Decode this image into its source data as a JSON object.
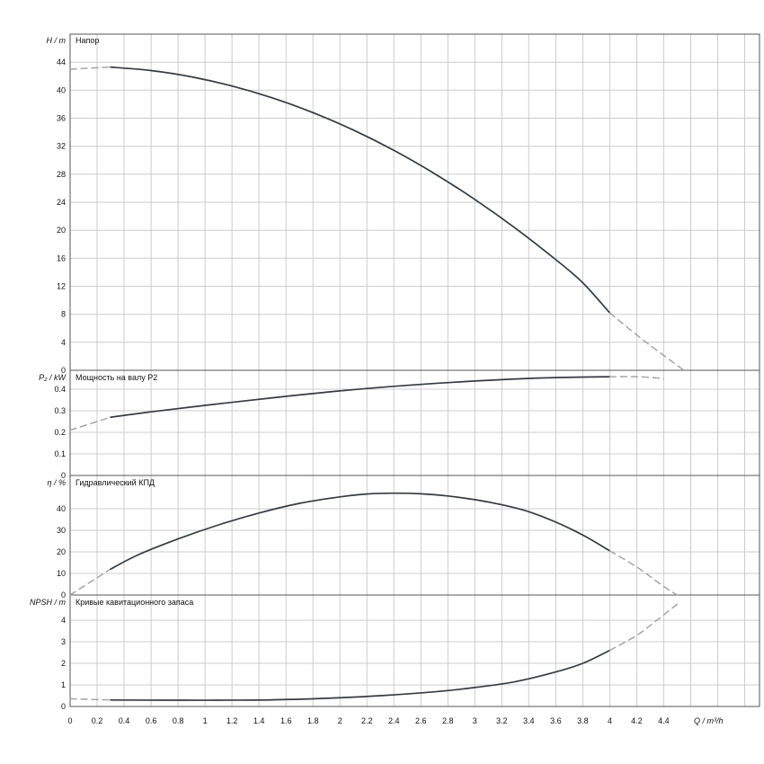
{
  "page": {
    "background": "#ffffff"
  },
  "colors": {
    "curve": "#333b42",
    "dashed": "#a0a0a0",
    "grid": "#cccccc",
    "border": "#555555",
    "text": "#111111",
    "bg": "#ffffff"
  },
  "xaxis": {
    "label": "Q / m³/h",
    "xlim": [
      0,
      5.11
    ],
    "grid_step": 0.2,
    "grid_max": 5.0,
    "ticks": [
      0,
      0.2,
      0.4,
      0.6,
      0.8,
      1,
      1.2,
      1.4,
      1.6,
      1.8,
      2,
      2.2,
      2.4,
      2.6,
      2.8,
      3,
      3.2,
      3.4,
      3.6,
      3.8,
      4,
      4.2,
      4.4
    ],
    "tick_labels": [
      "0",
      "0.2",
      "0.4",
      "0.6",
      "0.8",
      "1",
      "1.2",
      "1.4",
      "1.6",
      "1.8",
      "2",
      "2.2",
      "2.4",
      "2.6",
      "2.8",
      "3",
      "3.2",
      "3.4",
      "3.6",
      "3.8",
      "4",
      "4.2",
      "4.4"
    ]
  },
  "chart_data": [
    {
      "type": "line",
      "title": "Напор",
      "ylabel": "H / m",
      "ylim": [
        0,
        48
      ],
      "yticks": [
        0,
        4,
        8,
        12,
        16,
        20,
        24,
        28,
        32,
        36,
        40,
        44
      ],
      "series": [
        {
          "name": "head-extension-left",
          "style": "dashed",
          "points": [
            [
              0,
              43.0
            ],
            [
              0.3,
              43.3
            ]
          ]
        },
        {
          "name": "head-curve",
          "style": "solid",
          "points": [
            [
              0.3,
              43.3
            ],
            [
              0.6,
              42.8
            ],
            [
              0.9,
              41.9
            ],
            [
              1.2,
              40.6
            ],
            [
              1.5,
              38.9
            ],
            [
              1.8,
              36.8
            ],
            [
              2.1,
              34.3
            ],
            [
              2.4,
              31.4
            ],
            [
              2.7,
              28.1
            ],
            [
              3.0,
              24.4
            ],
            [
              3.3,
              20.3
            ],
            [
              3.6,
              15.8
            ],
            [
              3.8,
              12.5
            ],
            [
              4.0,
              8.2
            ]
          ]
        },
        {
          "name": "head-extension-right",
          "style": "dashed",
          "points": [
            [
              4.0,
              8.2
            ],
            [
              4.25,
              4.3
            ],
            [
              4.55,
              0
            ]
          ]
        }
      ]
    },
    {
      "type": "line",
      "title": "Мощность на валу P2",
      "ylabel": "P₂ / kW",
      "ylim": [
        0,
        0.4875
      ],
      "yticks": [
        0,
        0.1,
        0.2,
        0.3,
        0.4
      ],
      "series": [
        {
          "name": "power-extension-left",
          "style": "dashed",
          "points": [
            [
              0,
              0.21
            ],
            [
              0.3,
              0.27
            ]
          ]
        },
        {
          "name": "power-curve",
          "style": "solid",
          "points": [
            [
              0.3,
              0.27
            ],
            [
              0.6,
              0.295
            ],
            [
              1.0,
              0.325
            ],
            [
              1.5,
              0.36
            ],
            [
              2.0,
              0.392
            ],
            [
              2.5,
              0.418
            ],
            [
              3.0,
              0.438
            ],
            [
              3.5,
              0.452
            ],
            [
              4.0,
              0.458
            ]
          ]
        },
        {
          "name": "power-extension-right",
          "style": "dashed",
          "points": [
            [
              4.0,
              0.458
            ],
            [
              4.2,
              0.458
            ],
            [
              4.4,
              0.45
            ]
          ]
        }
      ]
    },
    {
      "type": "line",
      "title": "Гидравлический КПД",
      "ylabel": "η / %",
      "ylim": [
        0,
        55.4
      ],
      "yticks": [
        0,
        10,
        20,
        30,
        40
      ],
      "series": [
        {
          "name": "efficiency-extension-left",
          "style": "dashed",
          "points": [
            [
              0,
              0
            ],
            [
              0.3,
              12
            ]
          ]
        },
        {
          "name": "efficiency-curve",
          "style": "solid",
          "points": [
            [
              0.3,
              12
            ],
            [
              0.5,
              18.5
            ],
            [
              0.8,
              26
            ],
            [
              1.1,
              32.5
            ],
            [
              1.4,
              38
            ],
            [
              1.7,
              42.5
            ],
            [
              2.0,
              45.5
            ],
            [
              2.2,
              46.8
            ],
            [
              2.4,
              47.2
            ],
            [
              2.6,
              46.9
            ],
            [
              2.8,
              45.9
            ],
            [
              3.0,
              44.2
            ],
            [
              3.2,
              41.8
            ],
            [
              3.4,
              38.6
            ],
            [
              3.6,
              33.8
            ],
            [
              3.8,
              27.8
            ],
            [
              4.0,
              20.5
            ]
          ]
        },
        {
          "name": "efficiency-extension-right",
          "style": "dashed",
          "points": [
            [
              4.0,
              20.5
            ],
            [
              4.2,
              13
            ],
            [
              4.4,
              4
            ],
            [
              4.5,
              0
            ]
          ]
        }
      ]
    },
    {
      "type": "line",
      "title": "Кривые кавитационного запаса",
      "ylabel": "NPSH / m",
      "ylim": [
        0,
        5.17
      ],
      "yticks": [
        0,
        1,
        2,
        3,
        4
      ],
      "series": [
        {
          "name": "npsh-extension-left",
          "style": "dashed",
          "points": [
            [
              0,
              0.36
            ],
            [
              0.3,
              0.3
            ]
          ]
        },
        {
          "name": "npsh-curve",
          "style": "solid",
          "points": [
            [
              0.3,
              0.3
            ],
            [
              0.7,
              0.29
            ],
            [
              1.1,
              0.29
            ],
            [
              1.5,
              0.31
            ],
            [
              1.9,
              0.38
            ],
            [
              2.3,
              0.5
            ],
            [
              2.7,
              0.68
            ],
            [
              3.0,
              0.88
            ],
            [
              3.3,
              1.15
            ],
            [
              3.6,
              1.6
            ],
            [
              3.8,
              2.0
            ],
            [
              4.0,
              2.6
            ]
          ]
        },
        {
          "name": "npsh-extension-right",
          "style": "dashed",
          "points": [
            [
              4.0,
              2.6
            ],
            [
              4.2,
              3.3
            ],
            [
              4.35,
              4.0
            ],
            [
              4.5,
              4.75
            ]
          ]
        }
      ]
    }
  ]
}
